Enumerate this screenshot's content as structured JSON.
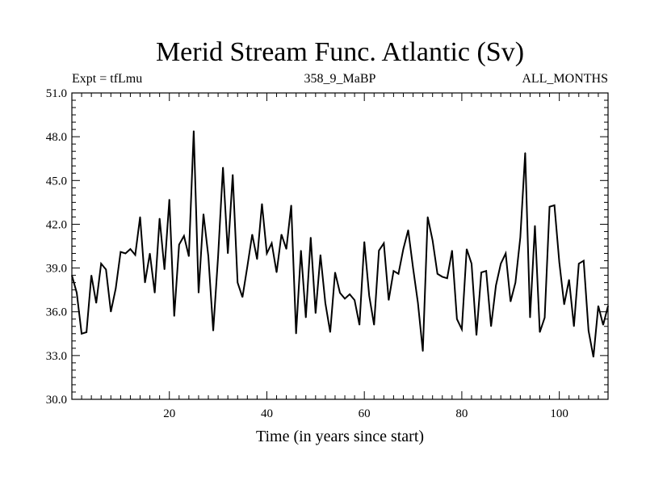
{
  "chart_data": {
    "type": "line",
    "title": "Merid Stream Func. Atlantic (Sv)",
    "subtitle_left": "Expt = tfLmu",
    "subtitle_center": "358_9_MaBP",
    "subtitle_right": "ALL_MONTHS",
    "xlabel": "Time (in years since start)",
    "ylabel": "",
    "xlim": [
      0,
      110
    ],
    "ylim": [
      30.0,
      51.0
    ],
    "xticks": [
      20,
      40,
      60,
      80,
      100
    ],
    "yticks": [
      "30.0",
      "33.0",
      "36.0",
      "39.0",
      "42.0",
      "45.0",
      "48.0",
      "51.0"
    ],
    "grid": false,
    "line_color": "#000000",
    "series": [
      {
        "name": "Merid Stream Func. Atlantic",
        "x": [
          0,
          1,
          2,
          3,
          4,
          5,
          6,
          7,
          8,
          9,
          10,
          11,
          12,
          13,
          14,
          15,
          16,
          17,
          18,
          19,
          20,
          21,
          22,
          23,
          24,
          25,
          26,
          27,
          28,
          29,
          30,
          31,
          32,
          33,
          34,
          35,
          36,
          37,
          38,
          39,
          40,
          41,
          42,
          43,
          44,
          45,
          46,
          47,
          48,
          49,
          50,
          51,
          52,
          53,
          54,
          55,
          56,
          57,
          58,
          59,
          60,
          61,
          62,
          63,
          64,
          65,
          66,
          67,
          68,
          69,
          70,
          71,
          72,
          73,
          74,
          75,
          76,
          77,
          78,
          79,
          80,
          81,
          82,
          83,
          84,
          85,
          86,
          87,
          88,
          89,
          90,
          91,
          92,
          93,
          94,
          95,
          96,
          97,
          98,
          99,
          100,
          101,
          102,
          103,
          104,
          105,
          106,
          107,
          108,
          109,
          110
        ],
        "values": [
          38.5,
          37.3,
          34.5,
          34.6,
          38.5,
          36.6,
          39.3,
          38.9,
          36.0,
          37.6,
          40.1,
          40.0,
          40.3,
          39.9,
          42.5,
          38.0,
          40.0,
          37.3,
          42.4,
          38.9,
          43.7,
          35.7,
          40.6,
          41.2,
          39.8,
          48.4,
          37.3,
          42.7,
          39.8,
          34.7,
          39.8,
          45.9,
          40.0,
          45.4,
          38.0,
          37.0,
          39.1,
          41.3,
          39.6,
          43.4,
          40.0,
          40.7,
          38.7,
          41.3,
          40.3,
          43.3,
          34.5,
          40.2,
          35.6,
          41.1,
          35.9,
          39.9,
          36.6,
          34.6,
          38.7,
          37.3,
          36.9,
          37.2,
          36.8,
          35.1,
          40.8,
          37.1,
          35.1,
          40.2,
          40.7,
          36.8,
          38.8,
          38.6,
          40.3,
          41.6,
          39.0,
          36.6,
          33.3,
          42.5,
          40.9,
          38.6,
          38.4,
          38.3,
          40.2,
          35.5,
          34.8,
          40.3,
          39.3,
          34.4,
          38.7,
          38.8,
          35.0,
          37.8,
          39.3,
          40.0,
          36.7,
          38.0,
          41.1,
          46.9,
          35.6,
          41.9,
          34.6,
          35.6,
          43.2,
          43.3,
          39.4,
          36.5,
          38.2,
          35.0,
          39.3,
          39.5,
          34.7,
          32.9,
          36.4,
          35.1,
          36.4
        ]
      }
    ]
  }
}
